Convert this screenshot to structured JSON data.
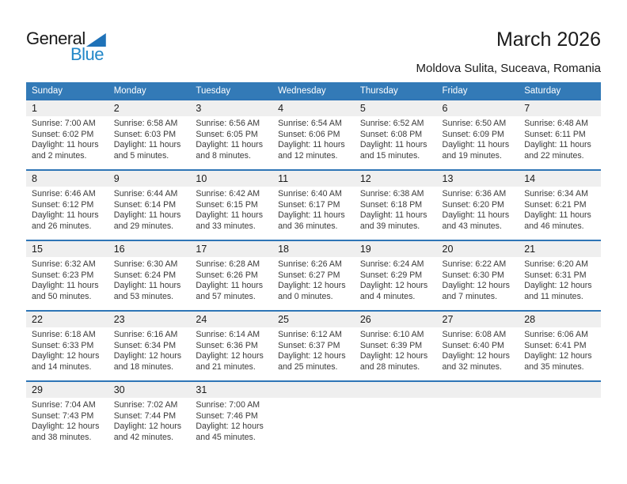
{
  "logo": {
    "general": "General",
    "blue": "Blue"
  },
  "header": {
    "title": "March 2026",
    "subtitle": "Moldova Sulita, Suceava, Romania"
  },
  "colors": {
    "header_bg": "#337AB7",
    "row_line": "#2E75B6",
    "day_strip_bg": "#EFEFEF",
    "logo_blue": "#2287C8",
    "logo_triangle": "#1F72B8"
  },
  "calendar": {
    "weekday_headers": [
      "Sunday",
      "Monday",
      "Tuesday",
      "Wednesday",
      "Thursday",
      "Friday",
      "Saturday"
    ],
    "weeks": [
      [
        {
          "day": "1",
          "sunrise": "Sunrise: 7:00 AM",
          "sunset": "Sunset: 6:02 PM",
          "daylight1": "Daylight: 11 hours",
          "daylight2": "and 2 minutes."
        },
        {
          "day": "2",
          "sunrise": "Sunrise: 6:58 AM",
          "sunset": "Sunset: 6:03 PM",
          "daylight1": "Daylight: 11 hours",
          "daylight2": "and 5 minutes."
        },
        {
          "day": "3",
          "sunrise": "Sunrise: 6:56 AM",
          "sunset": "Sunset: 6:05 PM",
          "daylight1": "Daylight: 11 hours",
          "daylight2": "and 8 minutes."
        },
        {
          "day": "4",
          "sunrise": "Sunrise: 6:54 AM",
          "sunset": "Sunset: 6:06 PM",
          "daylight1": "Daylight: 11 hours",
          "daylight2": "and 12 minutes."
        },
        {
          "day": "5",
          "sunrise": "Sunrise: 6:52 AM",
          "sunset": "Sunset: 6:08 PM",
          "daylight1": "Daylight: 11 hours",
          "daylight2": "and 15 minutes."
        },
        {
          "day": "6",
          "sunrise": "Sunrise: 6:50 AM",
          "sunset": "Sunset: 6:09 PM",
          "daylight1": "Daylight: 11 hours",
          "daylight2": "and 19 minutes."
        },
        {
          "day": "7",
          "sunrise": "Sunrise: 6:48 AM",
          "sunset": "Sunset: 6:11 PM",
          "daylight1": "Daylight: 11 hours",
          "daylight2": "and 22 minutes."
        }
      ],
      [
        {
          "day": "8",
          "sunrise": "Sunrise: 6:46 AM",
          "sunset": "Sunset: 6:12 PM",
          "daylight1": "Daylight: 11 hours",
          "daylight2": "and 26 minutes."
        },
        {
          "day": "9",
          "sunrise": "Sunrise: 6:44 AM",
          "sunset": "Sunset: 6:14 PM",
          "daylight1": "Daylight: 11 hours",
          "daylight2": "and 29 minutes."
        },
        {
          "day": "10",
          "sunrise": "Sunrise: 6:42 AM",
          "sunset": "Sunset: 6:15 PM",
          "daylight1": "Daylight: 11 hours",
          "daylight2": "and 33 minutes."
        },
        {
          "day": "11",
          "sunrise": "Sunrise: 6:40 AM",
          "sunset": "Sunset: 6:17 PM",
          "daylight1": "Daylight: 11 hours",
          "daylight2": "and 36 minutes."
        },
        {
          "day": "12",
          "sunrise": "Sunrise: 6:38 AM",
          "sunset": "Sunset: 6:18 PM",
          "daylight1": "Daylight: 11 hours",
          "daylight2": "and 39 minutes."
        },
        {
          "day": "13",
          "sunrise": "Sunrise: 6:36 AM",
          "sunset": "Sunset: 6:20 PM",
          "daylight1": "Daylight: 11 hours",
          "daylight2": "and 43 minutes."
        },
        {
          "day": "14",
          "sunrise": "Sunrise: 6:34 AM",
          "sunset": "Sunset: 6:21 PM",
          "daylight1": "Daylight: 11 hours",
          "daylight2": "and 46 minutes."
        }
      ],
      [
        {
          "day": "15",
          "sunrise": "Sunrise: 6:32 AM",
          "sunset": "Sunset: 6:23 PM",
          "daylight1": "Daylight: 11 hours",
          "daylight2": "and 50 minutes."
        },
        {
          "day": "16",
          "sunrise": "Sunrise: 6:30 AM",
          "sunset": "Sunset: 6:24 PM",
          "daylight1": "Daylight: 11 hours",
          "daylight2": "and 53 minutes."
        },
        {
          "day": "17",
          "sunrise": "Sunrise: 6:28 AM",
          "sunset": "Sunset: 6:26 PM",
          "daylight1": "Daylight: 11 hours",
          "daylight2": "and 57 minutes."
        },
        {
          "day": "18",
          "sunrise": "Sunrise: 6:26 AM",
          "sunset": "Sunset: 6:27 PM",
          "daylight1": "Daylight: 12 hours",
          "daylight2": "and 0 minutes."
        },
        {
          "day": "19",
          "sunrise": "Sunrise: 6:24 AM",
          "sunset": "Sunset: 6:29 PM",
          "daylight1": "Daylight: 12 hours",
          "daylight2": "and 4 minutes."
        },
        {
          "day": "20",
          "sunrise": "Sunrise: 6:22 AM",
          "sunset": "Sunset: 6:30 PM",
          "daylight1": "Daylight: 12 hours",
          "daylight2": "and 7 minutes."
        },
        {
          "day": "21",
          "sunrise": "Sunrise: 6:20 AM",
          "sunset": "Sunset: 6:31 PM",
          "daylight1": "Daylight: 12 hours",
          "daylight2": "and 11 minutes."
        }
      ],
      [
        {
          "day": "22",
          "sunrise": "Sunrise: 6:18 AM",
          "sunset": "Sunset: 6:33 PM",
          "daylight1": "Daylight: 12 hours",
          "daylight2": "and 14 minutes."
        },
        {
          "day": "23",
          "sunrise": "Sunrise: 6:16 AM",
          "sunset": "Sunset: 6:34 PM",
          "daylight1": "Daylight: 12 hours",
          "daylight2": "and 18 minutes."
        },
        {
          "day": "24",
          "sunrise": "Sunrise: 6:14 AM",
          "sunset": "Sunset: 6:36 PM",
          "daylight1": "Daylight: 12 hours",
          "daylight2": "and 21 minutes."
        },
        {
          "day": "25",
          "sunrise": "Sunrise: 6:12 AM",
          "sunset": "Sunset: 6:37 PM",
          "daylight1": "Daylight: 12 hours",
          "daylight2": "and 25 minutes."
        },
        {
          "day": "26",
          "sunrise": "Sunrise: 6:10 AM",
          "sunset": "Sunset: 6:39 PM",
          "daylight1": "Daylight: 12 hours",
          "daylight2": "and 28 minutes."
        },
        {
          "day": "27",
          "sunrise": "Sunrise: 6:08 AM",
          "sunset": "Sunset: 6:40 PM",
          "daylight1": "Daylight: 12 hours",
          "daylight2": "and 32 minutes."
        },
        {
          "day": "28",
          "sunrise": "Sunrise: 6:06 AM",
          "sunset": "Sunset: 6:41 PM",
          "daylight1": "Daylight: 12 hours",
          "daylight2": "and 35 minutes."
        }
      ],
      [
        {
          "day": "29",
          "sunrise": "Sunrise: 7:04 AM",
          "sunset": "Sunset: 7:43 PM",
          "daylight1": "Daylight: 12 hours",
          "daylight2": "and 38 minutes."
        },
        {
          "day": "30",
          "sunrise": "Sunrise: 7:02 AM",
          "sunset": "Sunset: 7:44 PM",
          "daylight1": "Daylight: 12 hours",
          "daylight2": "and 42 minutes."
        },
        {
          "day": "31",
          "sunrise": "Sunrise: 7:00 AM",
          "sunset": "Sunset: 7:46 PM",
          "daylight1": "Daylight: 12 hours",
          "daylight2": "and 45 minutes."
        },
        null,
        null,
        null,
        null
      ]
    ]
  }
}
